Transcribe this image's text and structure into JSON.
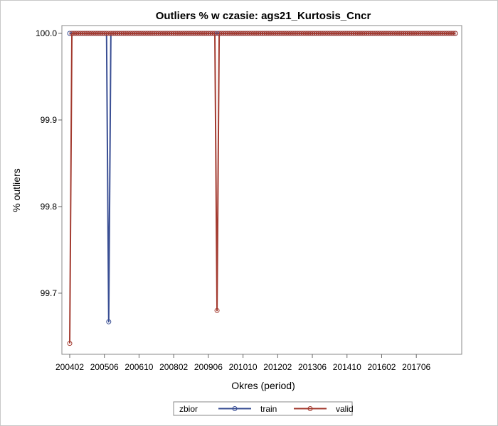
{
  "chart_data": {
    "type": "line",
    "title": "Outliers % w czasie: ags21_Kurtosis_Cncr",
    "xlabel": "Okres (period)",
    "ylabel": "% outliers",
    "x_start_period": "200402",
    "x_end_period": "201812",
    "x_ticks": [
      "200402",
      "200506",
      "200610",
      "200802",
      "200906",
      "201010",
      "201202",
      "201306",
      "201410",
      "201602",
      "201706"
    ],
    "y_ticks": [
      "99.7",
      "99.8",
      "99.9",
      "100.0"
    ],
    "y_tick_values": [
      99.7,
      99.8,
      99.9,
      100.0
    ],
    "ylim": [
      99.636,
      100.0
    ],
    "legend": {
      "title": "zbior",
      "position": "bottom-center"
    },
    "series": [
      {
        "name": "train",
        "color": "#3a4f94",
        "default_value": 100.0,
        "exceptions": [
          {
            "period": "200508",
            "value": 99.667
          }
        ]
      },
      {
        "name": "valid",
        "color": "#a33b30",
        "default_value": 100.0,
        "exceptions": [
          {
            "period": "200402",
            "value": 99.642
          },
          {
            "period": "200910",
            "value": 99.68
          }
        ]
      }
    ]
  }
}
